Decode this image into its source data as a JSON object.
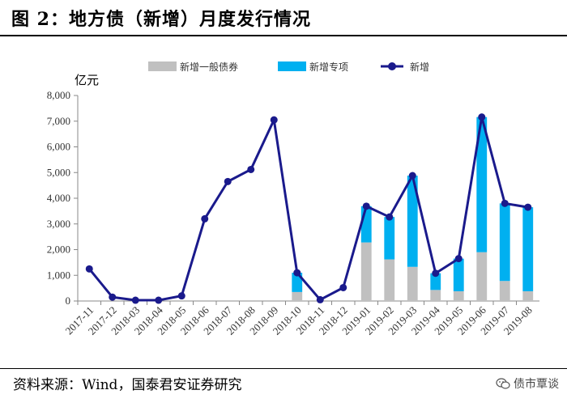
{
  "header": {
    "title": "图 2：地方债（新增）月度发行情况"
  },
  "footer": {
    "source": "资料来源：Wind，国泰君安证券研究",
    "watermark": "债市覃谈",
    "watermark_icon": "wechat-icon"
  },
  "chart_data": {
    "type": "bar",
    "stacked": true,
    "unit_label": "亿元",
    "categories": [
      "2017-11",
      "2017-12",
      "2018-03",
      "2018-04",
      "2018-05",
      "2018-06",
      "2018-07",
      "2018-08",
      "2018-09",
      "2018-10",
      "2018-11",
      "2018-12",
      "2019-01",
      "2019-02",
      "2019-03",
      "2019-04",
      "2019-05",
      "2019-06",
      "2019-07",
      "2019-08"
    ],
    "ylim": [
      0,
      8000
    ],
    "yticks": [
      0,
      1000,
      2000,
      3000,
      4000,
      5000,
      6000,
      7000,
      8000
    ],
    "ytick_labels": [
      "0",
      "1,000",
      "2,000",
      "3,000",
      "4,000",
      "5,000",
      "6,000",
      "7,000",
      "8,000"
    ],
    "legend_position": "top",
    "grid": false,
    "series": [
      {
        "name": "新增一般债券",
        "type": "bar",
        "color": "#c0c0c0",
        "values": [
          0,
          0,
          0,
          0,
          0,
          0,
          0,
          0,
          0,
          350,
          0,
          0,
          2280,
          1620,
          1330,
          430,
          380,
          1900,
          780,
          380
        ]
      },
      {
        "name": "新增专项",
        "type": "bar",
        "color": "#00b0f0",
        "values": [
          0,
          0,
          0,
          0,
          0,
          0,
          0,
          0,
          0,
          750,
          0,
          0,
          1410,
          1650,
          3550,
          650,
          1270,
          5260,
          3020,
          3270
        ]
      },
      {
        "name": "新增",
        "type": "line",
        "color": "#1a1a8c",
        "values": [
          1250,
          150,
          30,
          30,
          200,
          3200,
          4650,
          5120,
          7050,
          1100,
          50,
          520,
          3690,
          3270,
          4880,
          1080,
          1650,
          7160,
          3800,
          3650
        ]
      }
    ]
  }
}
